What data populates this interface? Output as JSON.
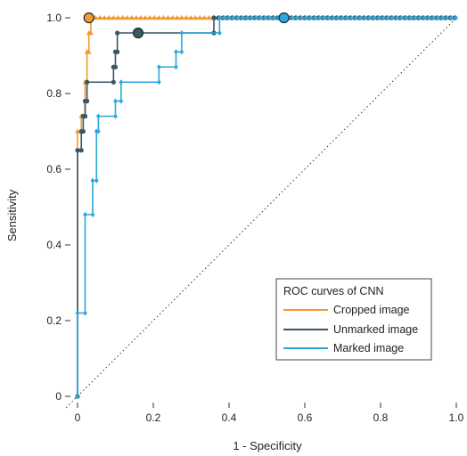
{
  "chart_data": {
    "type": "line",
    "title": "",
    "xlabel": "1 - Specificity",
    "ylabel": "Sensitivity",
    "xlim": [
      0,
      1
    ],
    "ylim": [
      0,
      1
    ],
    "x_ticks": [
      "0",
      "0.2",
      "0.4",
      "0.6",
      "0.8",
      "1.0"
    ],
    "y_ticks": [
      "0",
      "0.2",
      "0.4",
      "0.6",
      "0.8",
      "1.0"
    ],
    "grid": false,
    "reference_line": "diagonal (chance)",
    "legend": {
      "title": "ROC curves of CNN",
      "placement": "bottom-right"
    },
    "series": [
      {
        "name": "Cropped image",
        "color": "#f29a2e",
        "marker": "triangle",
        "points": [
          [
            0,
            0
          ],
          [
            0,
            0.7
          ],
          [
            0.01,
            0.7
          ],
          [
            0.01,
            0.74
          ],
          [
            0.02,
            0.74
          ],
          [
            0.02,
            0.83
          ],
          [
            0.025,
            0.83
          ],
          [
            0.025,
            0.91
          ],
          [
            0.03,
            0.91
          ],
          [
            0.03,
            0.96
          ],
          [
            0.035,
            0.96
          ],
          [
            0.035,
            1.0
          ],
          [
            0.36,
            1.0
          ],
          [
            1.0,
            1.0
          ]
        ],
        "highlight": [
          0.03,
          1.0
        ]
      },
      {
        "name": "Unmarked image",
        "color": "#3a5763",
        "marker": "circle",
        "points": [
          [
            0,
            0
          ],
          [
            0,
            0.65
          ],
          [
            0.01,
            0.65
          ],
          [
            0.01,
            0.7
          ],
          [
            0.015,
            0.7
          ],
          [
            0.015,
            0.74
          ],
          [
            0.02,
            0.74
          ],
          [
            0.02,
            0.78
          ],
          [
            0.025,
            0.78
          ],
          [
            0.025,
            0.83
          ],
          [
            0.095,
            0.83
          ],
          [
            0.095,
            0.87
          ],
          [
            0.1,
            0.87
          ],
          [
            0.1,
            0.91
          ],
          [
            0.105,
            0.91
          ],
          [
            0.105,
            0.96
          ],
          [
            0.36,
            0.96
          ],
          [
            0.36,
            1.0
          ],
          [
            1.0,
            1.0
          ]
        ],
        "highlight": [
          0.16,
          0.96
        ]
      },
      {
        "name": "Marked image",
        "color": "#2aa7df",
        "marker": "diamond",
        "points": [
          [
            0,
            0
          ],
          [
            0,
            0.22
          ],
          [
            0.02,
            0.22
          ],
          [
            0.02,
            0.48
          ],
          [
            0.04,
            0.48
          ],
          [
            0.04,
            0.57
          ],
          [
            0.05,
            0.57
          ],
          [
            0.05,
            0.7
          ],
          [
            0.055,
            0.7
          ],
          [
            0.055,
            0.74
          ],
          [
            0.1,
            0.74
          ],
          [
            0.1,
            0.78
          ],
          [
            0.115,
            0.78
          ],
          [
            0.115,
            0.83
          ],
          [
            0.215,
            0.83
          ],
          [
            0.215,
            0.87
          ],
          [
            0.26,
            0.87
          ],
          [
            0.26,
            0.91
          ],
          [
            0.275,
            0.91
          ],
          [
            0.275,
            0.96
          ],
          [
            0.375,
            0.96
          ],
          [
            0.375,
            1.0
          ],
          [
            1.0,
            1.0
          ]
        ],
        "highlight": [
          0.545,
          1.0
        ]
      }
    ]
  }
}
